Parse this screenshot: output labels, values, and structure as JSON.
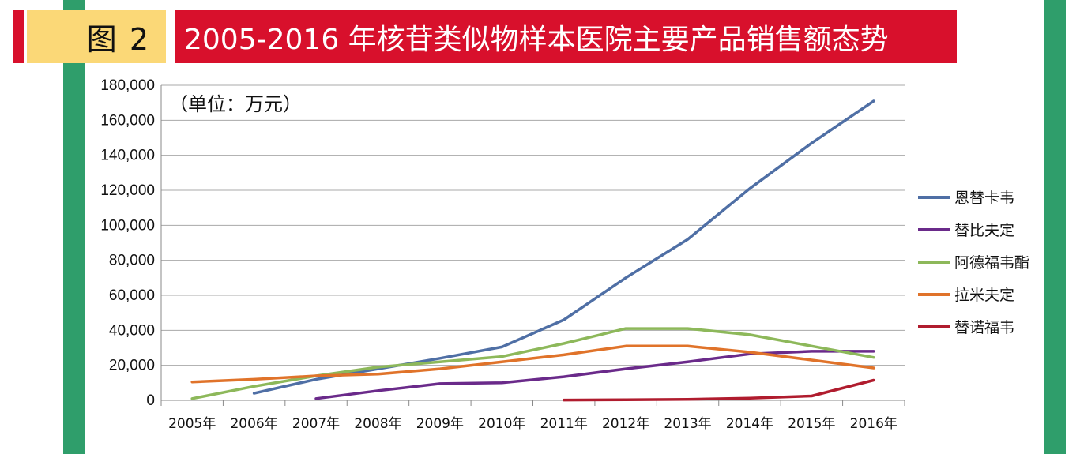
{
  "header": {
    "figure_label": "图 2",
    "title": "2005-2016 年核苷类似物样本医院主要产品销售额态势"
  },
  "colors": {
    "green_band": "#2f9e6b",
    "red": "#d8102c",
    "yellow": "#fbd877",
    "grid": "#a8a8a8",
    "axis": "#8a8a8a"
  },
  "chart_data": {
    "type": "line",
    "unit_label": "（单位：万元）",
    "categories": [
      "2005年",
      "2006年",
      "2007年",
      "2008年",
      "2009年",
      "2010年",
      "2011年",
      "2012年",
      "2013年",
      "2014年",
      "2015年",
      "2016年"
    ],
    "y_ticks": [
      "0",
      "20,000",
      "40,000",
      "60,000",
      "80,000",
      "100,000",
      "120,000",
      "140,000",
      "160,000",
      "180,000"
    ],
    "ylim": [
      0,
      180000
    ],
    "grid": true,
    "legend_position": "right",
    "series": [
      {
        "name": "恩替卡韦",
        "color": "#4f6fa5",
        "values": [
          null,
          4000,
          12000,
          18000,
          24000,
          30500,
          46000,
          70000,
          92000,
          121000,
          147000,
          171000
        ]
      },
      {
        "name": "替比夫定",
        "color": "#6a2a8a",
        "values": [
          null,
          null,
          1000,
          5500,
          9500,
          10000,
          13500,
          18000,
          22000,
          26500,
          28000,
          28000
        ]
      },
      {
        "name": "阿德福韦酯",
        "color": "#8db85a",
        "values": [
          1000,
          8000,
          14000,
          19000,
          22000,
          25000,
          32500,
          41000,
          41000,
          37500,
          31000,
          24500
        ]
      },
      {
        "name": "拉米夫定",
        "color": "#e0732a",
        "values": [
          10500,
          12000,
          14000,
          15000,
          18000,
          22000,
          26000,
          31000,
          31000,
          27500,
          23000,
          18500
        ]
      },
      {
        "name": "替诺福韦",
        "color": "#b01c2e",
        "values": [
          null,
          null,
          null,
          null,
          null,
          null,
          200,
          300,
          600,
          1200,
          2500,
          11500
        ]
      }
    ]
  }
}
